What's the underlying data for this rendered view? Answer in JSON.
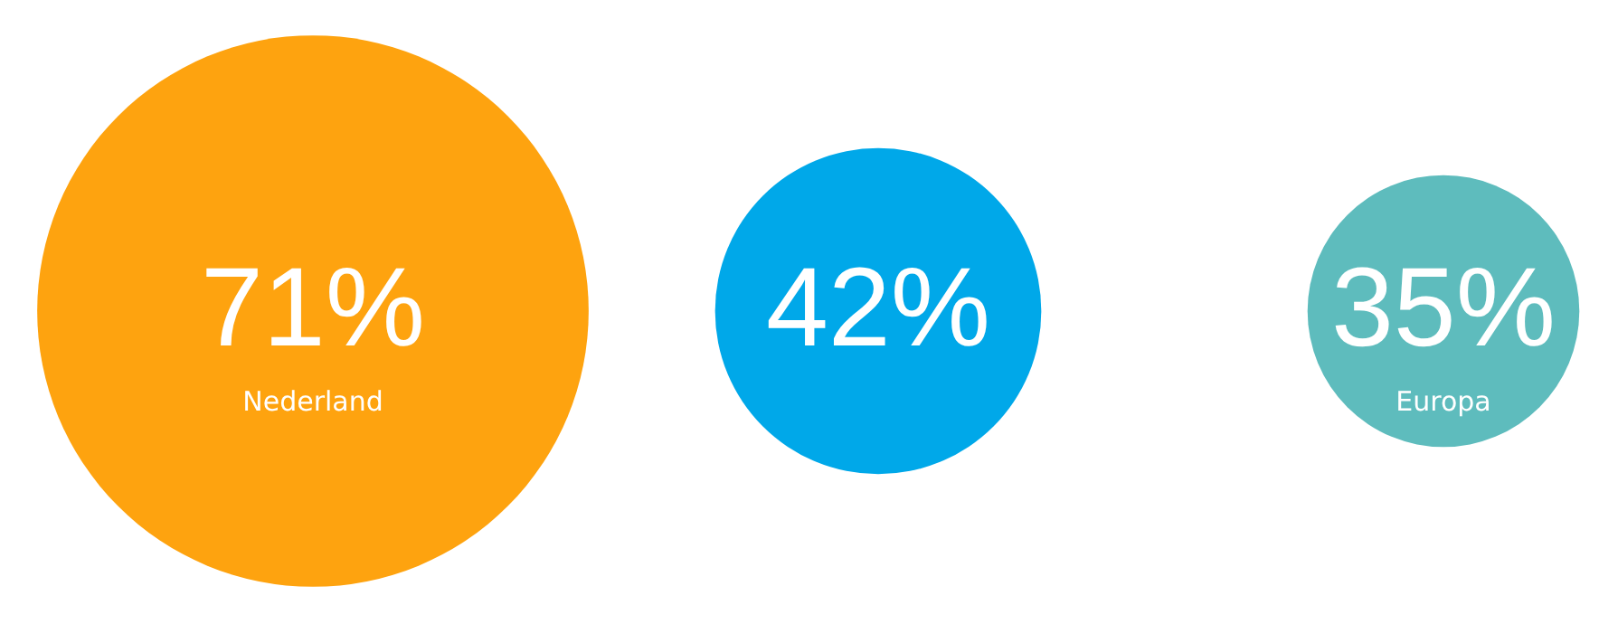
{
  "chart_data": {
    "type": "other",
    "categories": [
      "Nederland",
      null,
      "Europa"
    ],
    "values": [
      71,
      42,
      35
    ],
    "value_labels": [
      "71%",
      "42%",
      "35%"
    ],
    "colors": [
      "#fea30f",
      "#00a8e9",
      "#5ebcbd"
    ]
  }
}
